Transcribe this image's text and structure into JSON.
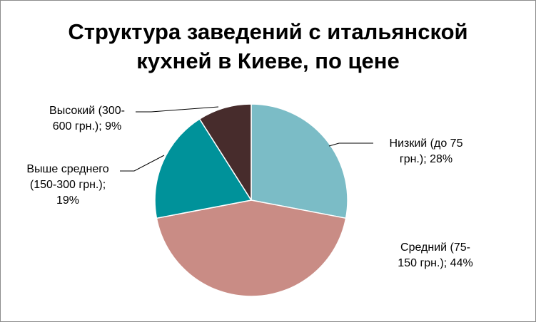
{
  "chart_data": {
    "type": "pie",
    "title": "Структура заведений с итальянской кухней в Киеве, по цене",
    "title_lines": [
      "Структура заведений с итальянской",
      "кухней в Киеве, по цене"
    ],
    "unit": "%",
    "legend": "none",
    "slices": [
      {
        "label": "Низкий (до 75 грн.)",
        "value": 28,
        "color": "#7bbcc6",
        "label_lines": [
          "Низкий (до 75",
          "грн.); 28%"
        ]
      },
      {
        "label": "Средний (75-150 грн.)",
        "value": 44,
        "color": "#c98c85",
        "label_lines": [
          "Средний (75-",
          "150 грн.); 44%"
        ]
      },
      {
        "label": "Выше среднего (150-300 грн.)",
        "value": 19,
        "color": "#00929a",
        "label_lines": [
          "Выше среднего",
          "(150-300 грн.);",
          "19%"
        ]
      },
      {
        "label": "Высокий (300-600 грн.)",
        "value": 9,
        "color": "#472c2c",
        "label_lines": [
          "Высокий (300-",
          "600 грн.); 9%"
        ]
      }
    ]
  }
}
